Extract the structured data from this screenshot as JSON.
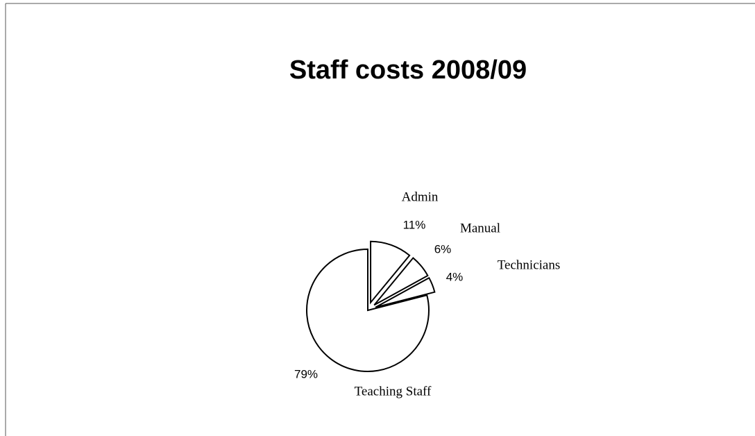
{
  "chart_data": {
    "type": "pie",
    "title": "Staff costs 2008/09",
    "categories": [
      "Admin",
      "Manual",
      "Technicians",
      "Teaching Staff"
    ],
    "values": [
      11,
      6,
      4,
      79
    ],
    "value_labels": [
      "11%",
      "6%",
      "4%",
      "79%"
    ],
    "color": "#ffffff"
  }
}
